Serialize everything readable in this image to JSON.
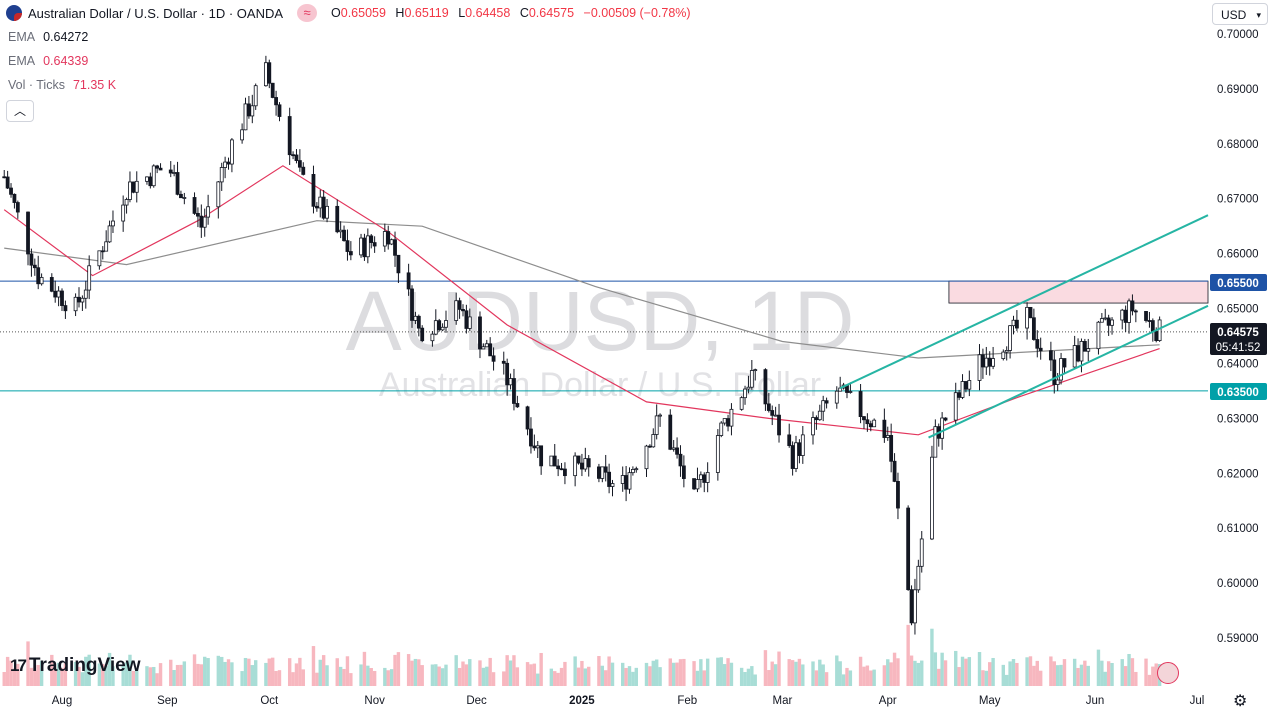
{
  "header": {
    "title": "Australian Dollar / U.S. Dollar · 1D · OANDA",
    "ohlc": {
      "o_label": "O",
      "o": "0.65059",
      "h_label": "H",
      "h": "0.65119",
      "l_label": "L",
      "l": "0.64458",
      "c_label": "C",
      "c": "0.64575",
      "change": "−0.00509 (−0.78%)"
    }
  },
  "indicators": [
    {
      "name": "EMA",
      "value": "0.64272"
    },
    {
      "name": "EMA",
      "value": "0.64339"
    },
    {
      "name": "Vol · Ticks",
      "value": "71.35 K"
    }
  ],
  "toolbar": {
    "collapse_icon": "chevron-up-icon",
    "currency_label": "USD"
  },
  "watermark": {
    "symbol": "AUDUSD, 1D",
    "name": "Australian Dollar / U.S. Dollar"
  },
  "price_badges": {
    "resistance": "0.65500",
    "last_price": "0.64575",
    "countdown": "05:41:52",
    "support": "0.63500"
  },
  "logo": {
    "text": "TradingView"
  },
  "colors": {
    "up": "#ffffff",
    "down": "#131722",
    "ema_fast": "#e2365d",
    "ema_slow": "#8d8d8d",
    "channel": "#26b5a4",
    "resistance_zone": "#fadbe1",
    "vol_up": "#a8ddd6",
    "vol_down": "#f7b7bf",
    "line_blue": "#1e53a6"
  },
  "chart_data": {
    "type": "line",
    "title": "AUDUSD, 1D",
    "y_axis": {
      "ticks": [
        "0.70000",
        "0.69000",
        "0.68000",
        "0.67000",
        "0.66000",
        "0.65000",
        "0.64000",
        "0.63000",
        "0.62000",
        "0.61000",
        "0.60000",
        "0.59000"
      ],
      "range": [
        0.585,
        0.702
      ]
    },
    "x_axis": {
      "ticks": [
        "Aug",
        "Sep",
        "Oct",
        "Nov",
        "Dec",
        "2025",
        "Feb",
        "Mar",
        "Apr",
        "May",
        "Jun",
        "Jul"
      ]
    },
    "price_path": [
      {
        "date": "2024-07-15",
        "close": 0.674
      },
      {
        "date": "2024-07-25",
        "close": 0.656
      },
      {
        "date": "2024-08-05",
        "close": 0.65
      },
      {
        "date": "2024-08-20",
        "close": 0.672
      },
      {
        "date": "2024-09-01",
        "close": 0.676
      },
      {
        "date": "2024-09-11",
        "close": 0.665
      },
      {
        "date": "2024-09-20",
        "close": 0.68
      },
      {
        "date": "2024-09-30",
        "close": 0.693
      },
      {
        "date": "2024-10-10",
        "close": 0.674
      },
      {
        "date": "2024-10-25",
        "close": 0.66
      },
      {
        "date": "2024-11-05",
        "close": 0.664
      },
      {
        "date": "2024-11-14",
        "close": 0.646
      },
      {
        "date": "2024-11-26",
        "close": 0.65
      },
      {
        "date": "2024-12-10",
        "close": 0.637
      },
      {
        "date": "2024-12-20",
        "close": 0.623
      },
      {
        "date": "2025-01-05",
        "close": 0.62
      },
      {
        "date": "2025-01-12",
        "close": 0.617
      },
      {
        "date": "2025-01-24",
        "close": 0.63
      },
      {
        "date": "2025-02-03",
        "close": 0.615
      },
      {
        "date": "2025-02-10",
        "close": 0.627
      },
      {
        "date": "2025-02-20",
        "close": 0.638
      },
      {
        "date": "2025-03-04",
        "close": 0.623
      },
      {
        "date": "2025-03-17",
        "close": 0.635
      },
      {
        "date": "2025-04-01",
        "close": 0.627
      },
      {
        "date": "2025-04-08",
        "close": 0.594
      },
      {
        "date": "2025-04-15",
        "close": 0.627
      },
      {
        "date": "2025-04-28",
        "close": 0.64
      },
      {
        "date": "2025-05-12",
        "close": 0.648
      },
      {
        "date": "2025-05-20",
        "close": 0.638
      },
      {
        "date": "2025-06-03",
        "close": 0.646
      },
      {
        "date": "2025-06-12",
        "close": 0.65
      },
      {
        "date": "2025-06-20",
        "close": 0.6458
      }
    ],
    "ema_fast_path": [
      {
        "date": "2024-07-15",
        "value": 0.668
      },
      {
        "date": "2024-08-10",
        "value": 0.656
      },
      {
        "date": "2024-09-10",
        "value": 0.666
      },
      {
        "date": "2024-10-05",
        "value": 0.676
      },
      {
        "date": "2024-11-05",
        "value": 0.664
      },
      {
        "date": "2024-12-10",
        "value": 0.647
      },
      {
        "date": "2025-01-20",
        "value": 0.633
      },
      {
        "date": "2025-02-25",
        "value": 0.63
      },
      {
        "date": "2025-04-10",
        "value": 0.627
      },
      {
        "date": "2025-05-10",
        "value": 0.634
      },
      {
        "date": "2025-06-20",
        "value": 0.6427
      }
    ],
    "ema_slow_path": [
      {
        "date": "2024-07-15",
        "value": 0.661
      },
      {
        "date": "2024-08-20",
        "value": 0.658
      },
      {
        "date": "2024-10-15",
        "value": 0.666
      },
      {
        "date": "2024-11-15",
        "value": 0.665
      },
      {
        "date": "2025-01-05",
        "value": 0.654
      },
      {
        "date": "2025-03-01",
        "value": 0.644
      },
      {
        "date": "2025-04-10",
        "value": 0.641
      },
      {
        "date": "2025-06-20",
        "value": 0.6434
      }
    ],
    "levels": [
      {
        "label": "0.65500",
        "value": 0.655
      },
      {
        "label": "0.63500",
        "value": 0.635
      }
    ],
    "resistance_zone": {
      "from": 0.651,
      "to": 0.655
    },
    "channel": {
      "upper": [
        {
          "date": "2025-03-18",
          "value": 0.6355
        },
        {
          "date": "2025-07-01",
          "value": 0.667
        }
      ],
      "lower": [
        {
          "date": "2025-04-13",
          "value": 0.6265
        },
        {
          "date": "2025-07-01",
          "value": 0.6505
        }
      ]
    },
    "last_price": 0.64575
  }
}
